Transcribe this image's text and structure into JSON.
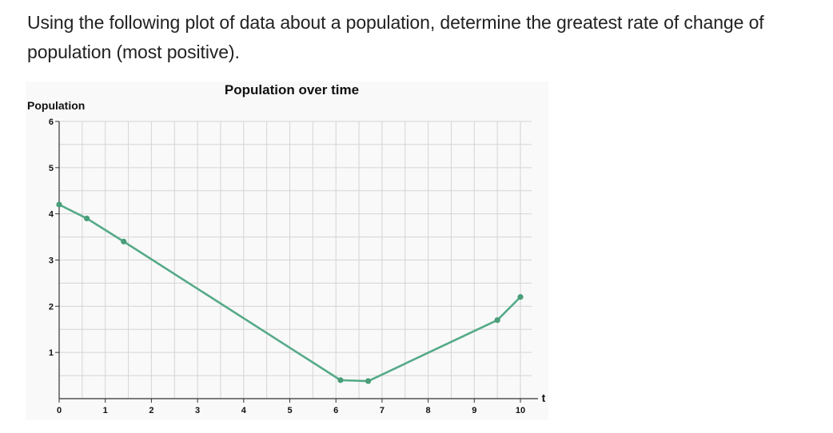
{
  "question": {
    "text": "Using the following plot of data about a population, determine the greatest rate of change of population (most positive)."
  },
  "colors": {
    "series": "#55aa88",
    "point": "#4a9e7a",
    "grid": "#d4d4d4",
    "axis": "#333333",
    "panel": "#f9f9f9"
  },
  "chart_data": {
    "type": "line",
    "title": "Population over time",
    "xlabel": "t",
    "ylabel": "Population",
    "xlim": [
      0,
      10.2
    ],
    "ylim": [
      0,
      6
    ],
    "x_ticks": [
      "0",
      "1",
      "2",
      "3",
      "4",
      "5",
      "6",
      "7",
      "8",
      "9",
      "10"
    ],
    "y_ticks": [
      "1",
      "2",
      "3",
      "4",
      "5",
      "6"
    ],
    "grid": true,
    "grid_minor_step": 0.5,
    "series": [
      {
        "x": [
          0,
          0.6,
          1.4,
          6.1,
          6.7,
          9.5,
          10
        ],
        "y": [
          4.2,
          3.9,
          3.4,
          0.4,
          0.38,
          1.7,
          2.2
        ]
      }
    ]
  }
}
